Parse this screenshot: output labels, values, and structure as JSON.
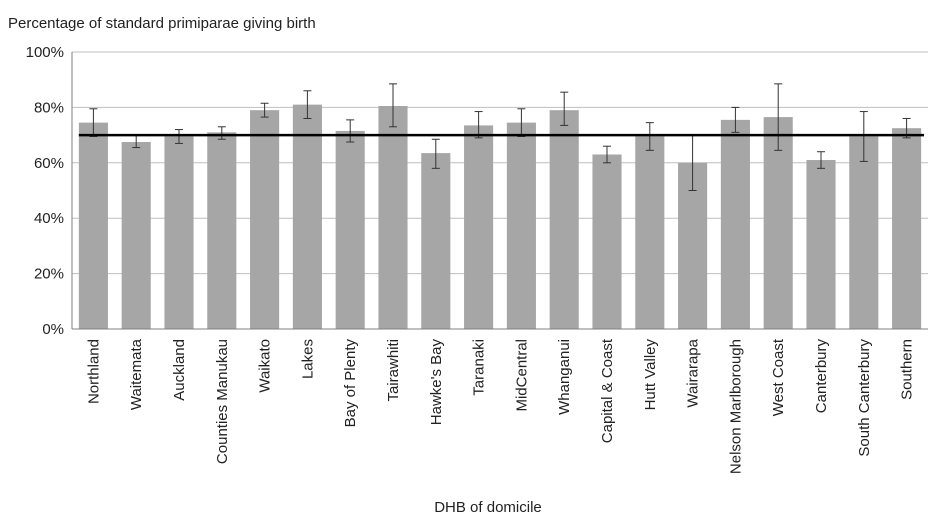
{
  "chart_data": {
    "type": "bar",
    "ylabel": "Percentage of standard primiparae giving birth",
    "xlabel": "DHB of domicile",
    "ylim": [
      0,
      100
    ],
    "yticks": [
      "0%",
      "20%",
      "40%",
      "60%",
      "80%",
      "100%"
    ],
    "grid": true,
    "categories": [
      "Northland",
      "Waitemata",
      "Auckland",
      "Counties Manukau",
      "Waikato",
      "Lakes",
      "Bay of Plenty",
      "Tairawhiti",
      "Hawke's Bay",
      "Taranaki",
      "MidCentral",
      "Whanganui",
      "Capital & Coast",
      "Hutt Valley",
      "Wairarapa",
      "Nelson Marlborough",
      "West Coast",
      "Canterbury",
      "South Canterbury",
      "Southern"
    ],
    "values": [
      74.5,
      67.5,
      69.5,
      71,
      79,
      81,
      71.5,
      80.5,
      63.5,
      73.5,
      74.5,
      79,
      63,
      69.5,
      60,
      75.5,
      76.5,
      61,
      69.5,
      72.5
    ],
    "error_low": [
      69.5,
      65.5,
      67,
      68.5,
      76.5,
      76,
      67.5,
      73,
      58,
      69,
      69.5,
      73.5,
      60,
      64.5,
      50,
      71,
      64.5,
      58,
      60.5,
      69
    ],
    "error_high": [
      79.5,
      70,
      72,
      73,
      81.5,
      86,
      75.5,
      88.5,
      68.5,
      78.5,
      79.5,
      85.5,
      66,
      74.5,
      70,
      80,
      88.5,
      64,
      78.5,
      76
    ],
    "reference_line": 70,
    "bar_color": "#a6a6a6",
    "reference_color": "#000000"
  }
}
